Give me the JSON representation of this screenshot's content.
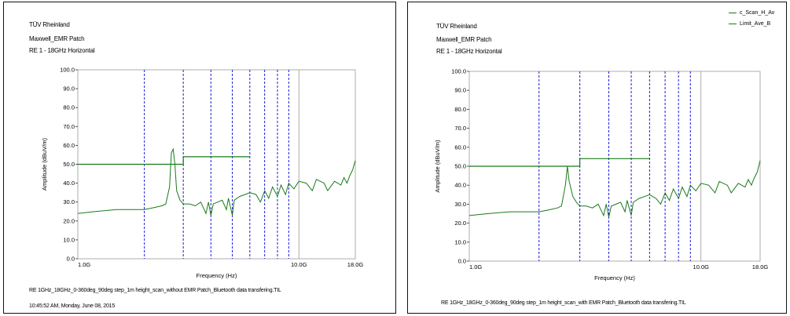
{
  "colors": {
    "trace": "#1a7a1a",
    "limit": "#1a7a1a",
    "grid": "#1a1ae0",
    "axis": "#333333"
  },
  "chart_data": [
    {
      "type": "line",
      "header": [
        "TÜV Rheinland",
        "Maxwell_EMR Patch",
        "RE 1 - 18GHz Horizontal"
      ],
      "xlabel": "Frequency (Hz)",
      "ylabel": "Amplitude (dBuV/m)",
      "x_scale": "log",
      "xlim": [
        1,
        18
      ],
      "x_ticks": [
        {
          "x": 1,
          "label": "1.0G"
        },
        {
          "x": 10,
          "label": "10.0G"
        },
        {
          "x": 18,
          "label": "18.0G"
        }
      ],
      "ylim": [
        0,
        100
      ],
      "y_ticks": [
        "0.0",
        "10.0",
        "20.0",
        "30.0",
        "40.0",
        "50.0",
        "60.0",
        "70.0",
        "80.0",
        "90.0",
        "100.0"
      ],
      "marker_lines_ghz": [
        2,
        3,
        4,
        5,
        6,
        7,
        8,
        9
      ],
      "limit": [
        [
          1,
          50
        ],
        [
          3,
          50
        ],
        [
          3,
          54
        ],
        [
          6,
          54
        ]
      ],
      "series": [
        {
          "values": [
            [
              1.0,
              24
            ],
            [
              1.2,
              25
            ],
            [
              1.5,
              26
            ],
            [
              1.8,
              26
            ],
            [
              2.0,
              26
            ],
            [
              2.2,
              27
            ],
            [
              2.4,
              28
            ],
            [
              2.5,
              29
            ],
            [
              2.6,
              38
            ],
            [
              2.65,
              56
            ],
            [
              2.7,
              58
            ],
            [
              2.75,
              50
            ],
            [
              2.8,
              36
            ],
            [
              2.9,
              31
            ],
            [
              3.0,
              29
            ],
            [
              3.2,
              29
            ],
            [
              3.4,
              28
            ],
            [
              3.6,
              30
            ],
            [
              3.8,
              24
            ],
            [
              3.9,
              30
            ],
            [
              4.0,
              23
            ],
            [
              4.1,
              29
            ],
            [
              4.3,
              30
            ],
            [
              4.5,
              31
            ],
            [
              4.7,
              26
            ],
            [
              4.8,
              32
            ],
            [
              5.0,
              23
            ],
            [
              5.1,
              31
            ],
            [
              5.4,
              33
            ],
            [
              5.7,
              34
            ],
            [
              6.0,
              35
            ],
            [
              6.4,
              34
            ],
            [
              6.7,
              30
            ],
            [
              7.0,
              36
            ],
            [
              7.3,
              32
            ],
            [
              7.6,
              38
            ],
            [
              8.0,
              33
            ],
            [
              8.3,
              39
            ],
            [
              8.7,
              34
            ],
            [
              9.0,
              40
            ],
            [
              9.5,
              37
            ],
            [
              10.0,
              41
            ],
            [
              10.8,
              40
            ],
            [
              11.5,
              36
            ],
            [
              12.0,
              42
            ],
            [
              13.0,
              40
            ],
            [
              13.5,
              36
            ],
            [
              14.5,
              41
            ],
            [
              15.5,
              39
            ],
            [
              16.0,
              43
            ],
            [
              16.5,
              40
            ],
            [
              17.0,
              44
            ],
            [
              17.5,
              47
            ],
            [
              18.0,
              52
            ]
          ]
        }
      ],
      "footer": [
        "RE 1GHz_18GHz_0-360deg_90deg step_1m height_scan_without EMR Patch_Bluetooth data transfering.TIL",
        "10:45:52 AM, Monday, June 08, 2015"
      ]
    },
    {
      "type": "line",
      "header": [
        "TÜV Rheinland",
        "Maxwell_EMR Patch",
        "RE 1 - 18GHz Horizontal"
      ],
      "legend": [
        "c_Scan_H_Av",
        "Limit_Ave_B"
      ],
      "xlabel": "Frequency (Hz)",
      "ylabel": "Amplitude (dBuV/m)",
      "x_scale": "log",
      "xlim": [
        1,
        18
      ],
      "x_ticks": [
        {
          "x": 1,
          "label": "1.0G"
        },
        {
          "x": 10,
          "label": "10.0G"
        },
        {
          "x": 18,
          "label": "18.0G"
        }
      ],
      "ylim": [
        0,
        100
      ],
      "y_ticks": [
        "0.0",
        "10.0",
        "20.0",
        "30.0",
        "40.0",
        "50.0",
        "60.0",
        "70.0",
        "80.0",
        "90.0",
        "100.0"
      ],
      "marker_lines_ghz": [
        2,
        3,
        4,
        5,
        6,
        7,
        8,
        9
      ],
      "limit": [
        [
          1,
          50
        ],
        [
          3,
          50
        ],
        [
          3,
          54
        ],
        [
          6,
          54
        ]
      ],
      "series": [
        {
          "name": "c_Scan_H_Av",
          "values": [
            [
              1.0,
              24
            ],
            [
              1.2,
              25
            ],
            [
              1.5,
              26
            ],
            [
              1.8,
              26
            ],
            [
              2.0,
              26
            ],
            [
              2.2,
              27
            ],
            [
              2.4,
              28
            ],
            [
              2.5,
              29
            ],
            [
              2.6,
              40
            ],
            [
              2.65,
              50
            ],
            [
              2.7,
              42
            ],
            [
              2.8,
              34
            ],
            [
              2.9,
              31
            ],
            [
              3.0,
              29
            ],
            [
              3.2,
              29
            ],
            [
              3.4,
              28
            ],
            [
              3.6,
              30
            ],
            [
              3.8,
              24
            ],
            [
              3.9,
              30
            ],
            [
              4.0,
              23
            ],
            [
              4.1,
              29
            ],
            [
              4.3,
              30
            ],
            [
              4.5,
              31
            ],
            [
              4.7,
              26
            ],
            [
              4.8,
              32
            ],
            [
              5.0,
              24
            ],
            [
              5.1,
              31
            ],
            [
              5.4,
              33
            ],
            [
              5.7,
              34
            ],
            [
              6.0,
              35
            ],
            [
              6.4,
              33
            ],
            [
              6.7,
              30
            ],
            [
              7.0,
              36
            ],
            [
              7.3,
              32
            ],
            [
              7.6,
              38
            ],
            [
              8.0,
              33
            ],
            [
              8.3,
              39
            ],
            [
              8.7,
              34
            ],
            [
              9.0,
              40
            ],
            [
              9.5,
              37
            ],
            [
              10.0,
              41
            ],
            [
              10.8,
              40
            ],
            [
              11.5,
              36
            ],
            [
              12.0,
              42
            ],
            [
              13.0,
              40
            ],
            [
              13.5,
              36
            ],
            [
              14.5,
              41
            ],
            [
              15.5,
              39
            ],
            [
              16.0,
              43
            ],
            [
              16.5,
              40
            ],
            [
              17.0,
              44
            ],
            [
              17.5,
              47
            ],
            [
              18.0,
              53
            ]
          ]
        }
      ],
      "footer": [
        "RE 1GHz_18GHz_0-360deg_90deg step_1m height_scan_with EMR Patch_Bluetooth data transfering.TIL"
      ]
    }
  ]
}
